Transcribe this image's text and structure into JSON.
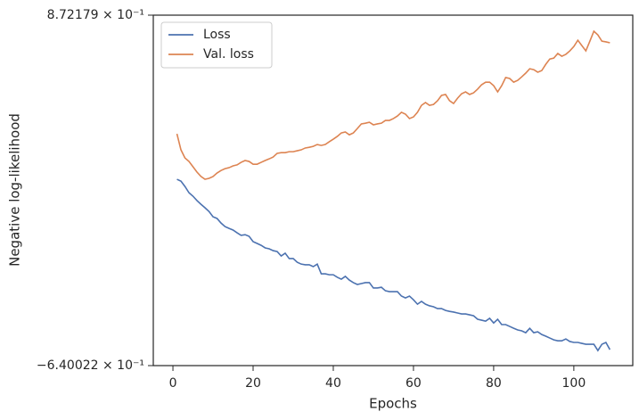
{
  "chart_data": {
    "type": "line",
    "xlabel": "Epochs",
    "ylabel": "Negative log-likelihood",
    "x": [
      1,
      2,
      3,
      4,
      5,
      6,
      7,
      8,
      9,
      10,
      11,
      12,
      13,
      14,
      15,
      16,
      17,
      18,
      19,
      20,
      21,
      22,
      23,
      24,
      25,
      26,
      27,
      28,
      29,
      30,
      31,
      32,
      33,
      34,
      35,
      36,
      37,
      38,
      39,
      40,
      41,
      42,
      43,
      44,
      45,
      46,
      47,
      48,
      49,
      50,
      51,
      52,
      53,
      54,
      55,
      56,
      57,
      58,
      59,
      60,
      61,
      62,
      63,
      64,
      65,
      66,
      67,
      68,
      69,
      70,
      71,
      72,
      73,
      74,
      75,
      76,
      77,
      78,
      79,
      80,
      81,
      82,
      83,
      84,
      85,
      86,
      87,
      88,
      89,
      90,
      91,
      92,
      93,
      94,
      95,
      96,
      97,
      98,
      99,
      100,
      101,
      102,
      103,
      104,
      105,
      106,
      107,
      108,
      109
    ],
    "series": [
      {
        "name": "Loss",
        "color": "#4c72b0",
        "values": [
          0.164,
          0.156,
          0.133,
          0.106,
          0.091,
          0.072,
          0.056,
          0.041,
          0.025,
          0.002,
          -0.005,
          -0.025,
          -0.04,
          -0.048,
          -0.055,
          -0.067,
          -0.078,
          -0.075,
          -0.082,
          -0.105,
          -0.113,
          -0.121,
          -0.132,
          -0.136,
          -0.144,
          -0.148,
          -0.167,
          -0.155,
          -0.178,
          -0.178,
          -0.194,
          -0.202,
          -0.205,
          -0.205,
          -0.213,
          -0.202,
          -0.244,
          -0.244,
          -0.248,
          -0.248,
          -0.259,
          -0.267,
          -0.255,
          -0.271,
          -0.282,
          -0.29,
          -0.286,
          -0.282,
          -0.282,
          -0.305,
          -0.305,
          -0.302,
          -0.317,
          -0.321,
          -0.321,
          -0.321,
          -0.34,
          -0.348,
          -0.34,
          -0.356,
          -0.375,
          -0.363,
          -0.375,
          -0.382,
          -0.386,
          -0.394,
          -0.394,
          -0.402,
          -0.406,
          -0.409,
          -0.413,
          -0.417,
          -0.417,
          -0.421,
          -0.425,
          -0.44,
          -0.444,
          -0.448,
          -0.436,
          -0.456,
          -0.44,
          -0.463,
          -0.463,
          -0.471,
          -0.479,
          -0.486,
          -0.49,
          -0.498,
          -0.479,
          -0.498,
          -0.494,
          -0.506,
          -0.513,
          -0.521,
          -0.529,
          -0.533,
          -0.533,
          -0.525,
          -0.536,
          -0.54,
          -0.54,
          -0.544,
          -0.548,
          -0.548,
          -0.548,
          -0.575,
          -0.548,
          -0.54,
          -0.571
        ]
      },
      {
        "name": "Val. loss",
        "color": "#dd8452",
        "values": [
          0.36,
          0.291,
          0.256,
          0.241,
          0.218,
          0.195,
          0.176,
          0.164,
          0.168,
          0.176,
          0.191,
          0.202,
          0.21,
          0.214,
          0.222,
          0.226,
          0.237,
          0.245,
          0.241,
          0.229,
          0.229,
          0.237,
          0.245,
          0.252,
          0.26,
          0.276,
          0.279,
          0.279,
          0.283,
          0.283,
          0.287,
          0.291,
          0.299,
          0.302,
          0.306,
          0.314,
          0.31,
          0.314,
          0.326,
          0.337,
          0.349,
          0.364,
          0.368,
          0.356,
          0.364,
          0.383,
          0.403,
          0.406,
          0.41,
          0.399,
          0.403,
          0.406,
          0.418,
          0.418,
          0.426,
          0.437,
          0.453,
          0.445,
          0.426,
          0.433,
          0.453,
          0.483,
          0.495,
          0.483,
          0.487,
          0.503,
          0.526,
          0.53,
          0.503,
          0.491,
          0.514,
          0.533,
          0.541,
          0.53,
          0.537,
          0.553,
          0.572,
          0.583,
          0.583,
          0.568,
          0.541,
          0.568,
          0.603,
          0.599,
          0.583,
          0.591,
          0.606,
          0.622,
          0.641,
          0.637,
          0.626,
          0.633,
          0.66,
          0.683,
          0.687,
          0.707,
          0.695,
          0.703,
          0.718,
          0.737,
          0.764,
          0.741,
          0.718,
          0.76,
          0.803,
          0.787,
          0.76,
          0.757,
          0.753
        ]
      }
    ],
    "xlim": [
      -4.9,
      114.7
    ],
    "xticks": [
      0,
      20,
      40,
      60,
      80,
      100
    ],
    "ylim": [
      -0.640022,
      0.872179
    ],
    "yticks": [
      {
        "value": -0.640022,
        "label": "−6.40022 × 10⁻¹"
      },
      {
        "value": 0.872179,
        "label": "8.72179 × 10⁻¹"
      }
    ],
    "grid": false,
    "legend": "upper-left"
  }
}
